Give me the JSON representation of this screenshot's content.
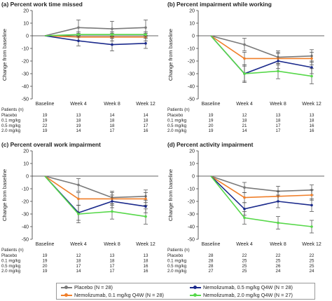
{
  "chart_data": [
    {
      "type": "line",
      "panel": "(a)",
      "title": "(a) Percent work time missed",
      "ylabel": "Change from baseline",
      "ylim": [
        -50,
        20
      ],
      "yticks": [
        20,
        10,
        0,
        -10,
        -20,
        -30,
        -40,
        -50
      ],
      "categories": [
        "Baseline",
        "Week 4",
        "Week 8",
        "Week 12"
      ],
      "series": [
        {
          "name": "Placebo (N = 28)",
          "values": [
            0,
            6.5,
            5.5,
            6.5
          ],
          "err": [
            0,
            6,
            6,
            6
          ]
        },
        {
          "name": "Nemolizumab, 0.1 mg/kg Q4W (N = 28)",
          "values": [
            0,
            -1,
            -1,
            -1
          ],
          "err": [
            0,
            3,
            3,
            3
          ]
        },
        {
          "name": "Nemolizumab, 0.5 mg/kg Q4W (N = 28)",
          "values": [
            0,
            -4,
            -7,
            -6
          ],
          "err": [
            0,
            4,
            5,
            4
          ]
        },
        {
          "name": "Nemolizumab, 2.0 mg/kg Q4W (N = 27)",
          "values": [
            0,
            1,
            1,
            1
          ],
          "err": [
            0,
            2,
            2,
            2
          ]
        }
      ],
      "patients_label": "Patients (n)",
      "patients": [
        {
          "label": "Placebo",
          "values": [
            "19",
            "13",
            "14",
            "14"
          ]
        },
        {
          "label": "0.1 mg/kg",
          "values": [
            "19",
            "18",
            "18",
            "18"
          ]
        },
        {
          "label": "0.5 mg/kg",
          "values": [
            "22",
            "19",
            "18",
            "17"
          ]
        },
        {
          "label": "2.0 mg/kg",
          "values": [
            "19",
            "14",
            "17",
            "16"
          ]
        }
      ]
    },
    {
      "type": "line",
      "panel": "(b)",
      "title": "(b) Percent impairment while working",
      "ylabel": "Change from baseline",
      "ylim": [
        -50,
        20
      ],
      "yticks": [
        20,
        10,
        0,
        -10,
        -20,
        -30,
        -40,
        -50
      ],
      "categories": [
        "Baseline",
        "Week 4",
        "Week 8",
        "Week 12"
      ],
      "series": [
        {
          "name": "Placebo (N = 28)",
          "values": [
            0,
            -7,
            -17,
            -16
          ],
          "err": [
            0,
            5,
            5,
            5
          ]
        },
        {
          "name": "Nemolizumab, 0.1 mg/kg Q4W (N = 28)",
          "values": [
            0,
            -18,
            -18,
            -18
          ],
          "err": [
            0,
            5,
            5,
            5
          ]
        },
        {
          "name": "Nemolizumab, 0.5 mg/kg Q4W (N = 28)",
          "values": [
            0,
            -30,
            -20,
            -25
          ],
          "err": [
            0,
            6,
            6,
            5
          ]
        },
        {
          "name": "Nemolizumab, 2.0 mg/kg Q4W (N = 27)",
          "values": [
            0,
            -30,
            -28,
            -32
          ],
          "err": [
            0,
            7,
            6,
            6
          ]
        }
      ],
      "patients_label": "Patients (n)",
      "patients": [
        {
          "label": "Placebo",
          "values": [
            "19",
            "12",
            "13",
            "13"
          ]
        },
        {
          "label": "0.1 mg/kg",
          "values": [
            "19",
            "18",
            "18",
            "18"
          ]
        },
        {
          "label": "0.5 mg/kg",
          "values": [
            "20",
            "21",
            "17",
            "16"
          ]
        },
        {
          "label": "2.0 mg/kg",
          "values": [
            "19",
            "14",
            "17",
            "16"
          ]
        }
      ]
    },
    {
      "type": "line",
      "panel": "(c)",
      "title": "(c) Percent overall work impairment",
      "ylabel": "Change from baseline",
      "ylim": [
        -50,
        20
      ],
      "yticks": [
        20,
        10,
        0,
        -10,
        -20,
        -30,
        -40,
        -50
      ],
      "categories": [
        "Baseline",
        "Week 4",
        "Week 8",
        "Week 12"
      ],
      "series": [
        {
          "name": "Placebo (N = 28)",
          "values": [
            0,
            -7,
            -17,
            -16
          ],
          "err": [
            0,
            5,
            5,
            5
          ]
        },
        {
          "name": "Nemolizumab, 0.1 mg/kg Q4W (N = 28)",
          "values": [
            0,
            -18,
            -18,
            -18
          ],
          "err": [
            0,
            5,
            5,
            5
          ]
        },
        {
          "name": "Nemolizumab, 0.5 mg/kg Q4W (N = 28)",
          "values": [
            0,
            -29,
            -20,
            -24
          ],
          "err": [
            0,
            6,
            5,
            5
          ]
        },
        {
          "name": "Nemolizumab, 2.0 mg/kg Q4W (N = 27)",
          "values": [
            0,
            -30,
            -28,
            -32
          ],
          "err": [
            0,
            7,
            6,
            6
          ]
        }
      ],
      "patients_label": "Patients (n)",
      "patients": [
        {
          "label": "Placebo",
          "values": [
            "19",
            "12",
            "13",
            "13"
          ]
        },
        {
          "label": "0.1 mg/kg",
          "values": [
            "19",
            "18",
            "18",
            "18"
          ]
        },
        {
          "label": "0.5 mg/kg",
          "values": [
            "20",
            "17",
            "17",
            "16"
          ]
        },
        {
          "label": "2.0 mg/kg",
          "values": [
            "19",
            "14",
            "17",
            "16"
          ]
        }
      ]
    },
    {
      "type": "line",
      "panel": "(d)",
      "title": "(d) Percent activity impairment",
      "ylabel": "Change from baseline",
      "ylim": [
        -50,
        20
      ],
      "yticks": [
        20,
        10,
        0,
        -10,
        -20,
        -30,
        -40,
        -50
      ],
      "categories": [
        "Baseline",
        "Week 4",
        "Week 8",
        "Week 12"
      ],
      "series": [
        {
          "name": "Placebo (N = 28)",
          "values": [
            0,
            -9,
            -12,
            -11
          ],
          "err": [
            0,
            4,
            4,
            4
          ]
        },
        {
          "name": "Nemolizumab, 0.1 mg/kg Q4W (N = 28)",
          "values": [
            0,
            -17,
            -16,
            -15
          ],
          "err": [
            0,
            4,
            4,
            4
          ]
        },
        {
          "name": "Nemolizumab, 0.5 mg/kg Q4W (N = 28)",
          "values": [
            0,
            -26,
            -20,
            -23
          ],
          "err": [
            0,
            5,
            5,
            5
          ]
        },
        {
          "name": "Nemolizumab, 2.0 mg/kg Q4W (N = 27)",
          "values": [
            0,
            -33,
            -37,
            -40
          ],
          "err": [
            0,
            5,
            5,
            5
          ]
        }
      ],
      "patients_label": "Patients (n)",
      "patients": [
        {
          "label": "Placebo",
          "values": [
            "28",
            "22",
            "22",
            "22"
          ]
        },
        {
          "label": "0.1 mg/kg",
          "values": [
            "28",
            "25",
            "25",
            "25"
          ]
        },
        {
          "label": "0.5 mg/kg",
          "values": [
            "28",
            "25",
            "26",
            "25"
          ]
        },
        {
          "label": "2.0 mg/kg",
          "values": [
            "27",
            "25",
            "24",
            "24"
          ]
        }
      ]
    }
  ],
  "legend": [
    {
      "label": "Placebo (N = 28)",
      "color": "#7a7a7a"
    },
    {
      "label": "Nemolizumab, 0.1 mg/kg Q4W (N = 28)",
      "color": "#f07f2a"
    },
    {
      "label": "Nemolizumab, 0.5 mg/kg Q4W (N = 28)",
      "color": "#1b2a8c"
    },
    {
      "label": "Nemolizumab, 2.0 mg/kg Q4W (N = 27)",
      "color": "#57d84a"
    }
  ],
  "colors": {
    "placebo": "#7a7a7a",
    "dose_0_1": "#f07f2a",
    "dose_0_5": "#1b2a8c",
    "dose_2_0": "#57d84a",
    "axis": "#333333",
    "error_bars": "#444444"
  }
}
